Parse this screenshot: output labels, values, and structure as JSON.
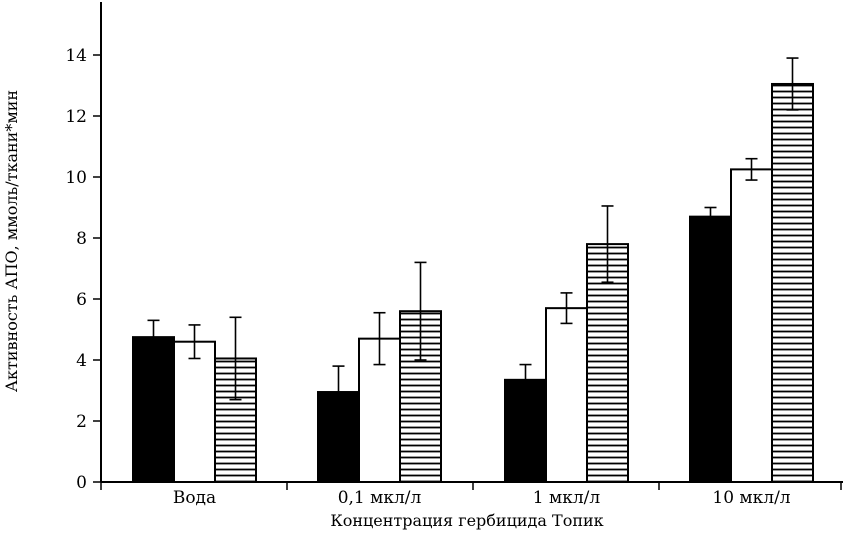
{
  "chart_data": {
    "type": "bar",
    "title": "",
    "xlabel": "Концентрация гербицида Топик",
    "ylabel": "Активность АПО, ммоль/ткани*мин",
    "categories": [
      "Вода",
      "0,1 мкл/л",
      "1 мкл/л",
      "10 мкл/л"
    ],
    "ylim": [
      0,
      16
    ],
    "yticks": [
      0,
      2,
      4,
      6,
      8,
      10,
      12,
      14
    ],
    "grid": false,
    "legend": "none",
    "series": [
      {
        "name": "series-1",
        "fill": "solid-black",
        "values": [
          4.75,
          2.95,
          3.35,
          8.7
        ],
        "errors": [
          0.55,
          0.85,
          0.5,
          0.3
        ]
      },
      {
        "name": "series-2",
        "fill": "white",
        "values": [
          4.6,
          4.7,
          5.7,
          10.25
        ],
        "errors": [
          0.55,
          0.85,
          0.5,
          0.35
        ]
      },
      {
        "name": "series-3",
        "fill": "horizontal-stripes",
        "values": [
          4.05,
          5.6,
          7.8,
          13.05
        ],
        "errors": [
          1.35,
          1.6,
          1.25,
          0.85
        ]
      }
    ]
  }
}
